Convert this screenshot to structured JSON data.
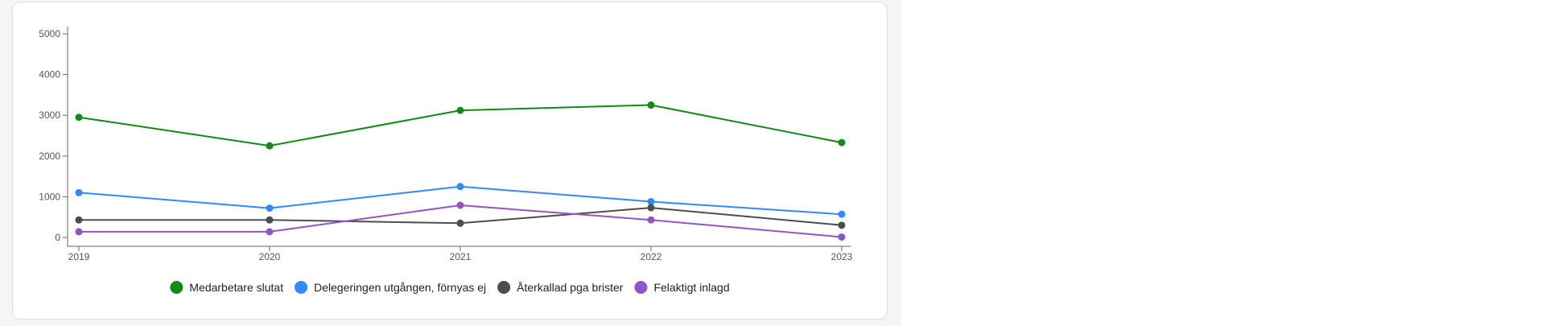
{
  "chart_data": {
    "type": "line",
    "x": [
      "2019",
      "2020",
      "2021",
      "2022",
      "2023"
    ],
    "ylim": [
      0,
      5000
    ],
    "yticks": [
      0,
      1000,
      2000,
      3000,
      4000,
      5000
    ],
    "grid": false,
    "legend_position": "bottom",
    "series": [
      {
        "name": "Medarbetare slutat",
        "color": "#138a13",
        "values": [
          2950,
          2250,
          3120,
          3250,
          2330
        ]
      },
      {
        "name": "Delegeringen utgången, förnyas ej",
        "color": "#3388ff",
        "values": [
          1100,
          720,
          1250,
          880,
          570
        ]
      },
      {
        "name": "Återkallad pga brister",
        "color": "#4d4d4d",
        "values": [
          430,
          430,
          350,
          730,
          300
        ]
      },
      {
        "name": "Felaktigt inlagd",
        "color": "#9155c8",
        "values": [
          140,
          140,
          790,
          430,
          10
        ]
      }
    ]
  }
}
